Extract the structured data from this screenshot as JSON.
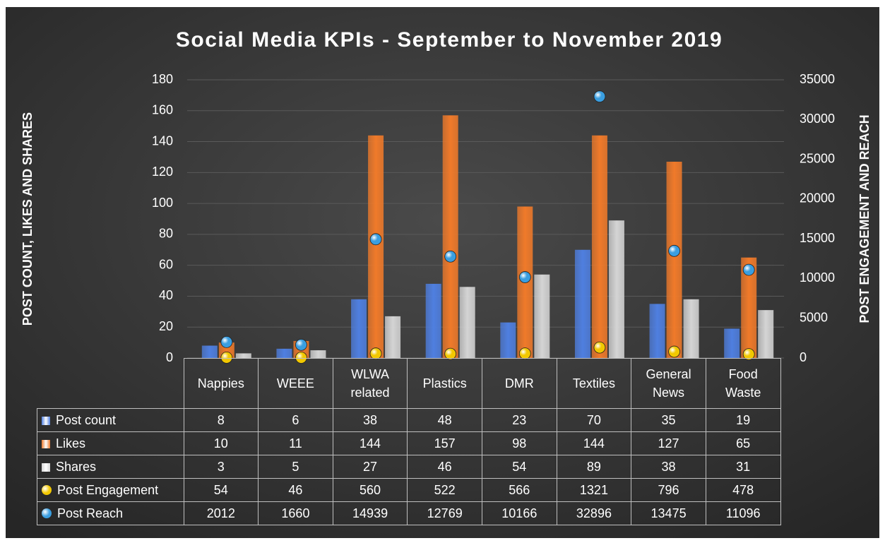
{
  "chart_data": {
    "type": "bar",
    "title": "Social Media KPIs - September to November 2019",
    "y_label": "POST COUNT, LIKES AND SHARES",
    "y2_label": "POST ENGAGEMENT AND REACH",
    "categories": [
      "Nappies",
      "WEEE",
      "WLWA related",
      "Plastics",
      "DMR",
      "Textiles",
      "General News",
      "Food Waste"
    ],
    "series": [
      {
        "name": "Post count",
        "color": "#4f7fe0",
        "values": [
          8,
          6,
          38,
          48,
          23,
          70,
          35,
          19
        ]
      },
      {
        "name": "Likes",
        "color": "#f07a2a",
        "values": [
          10,
          11,
          144,
          157,
          98,
          144,
          127,
          65
        ]
      },
      {
        "name": "Shares",
        "color": "#d4d4d4",
        "values": [
          3,
          5,
          27,
          46,
          54,
          89,
          38,
          31
        ]
      },
      {
        "name": "Post Engagement",
        "color": "#f2c800",
        "axis": "y2",
        "values": [
          54,
          46,
          560,
          522,
          566,
          1321,
          796,
          478
        ]
      },
      {
        "name": "Post Reach",
        "color": "#3a9ee0",
        "axis": "y2",
        "values": [
          2012,
          1660,
          14939,
          12769,
          10166,
          32896,
          13475,
          11096
        ]
      }
    ],
    "ylim": [
      0,
      180
    ],
    "yticks": [
      0,
      20,
      40,
      60,
      80,
      100,
      120,
      140,
      160,
      180
    ],
    "y2lim": [
      0,
      35000
    ],
    "y2ticks": [
      0,
      5000,
      10000,
      15000,
      20000,
      25000,
      30000,
      35000
    ],
    "grid": true
  }
}
